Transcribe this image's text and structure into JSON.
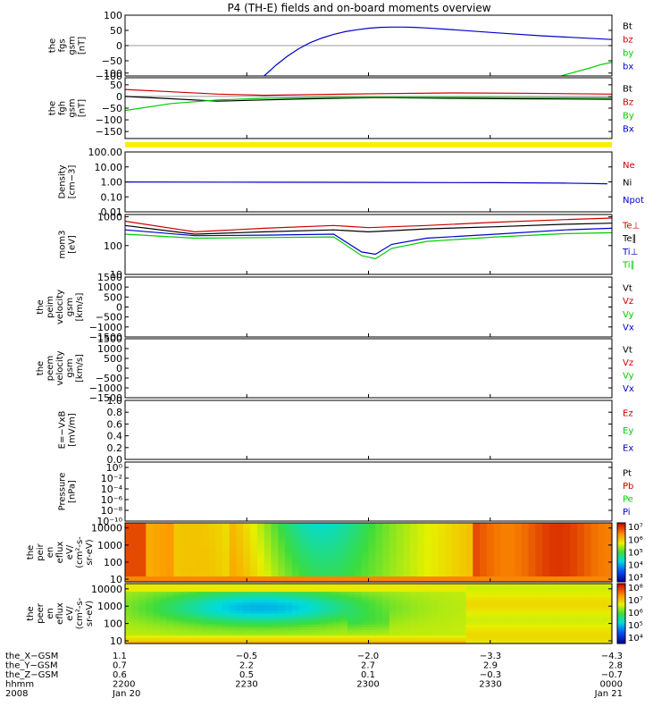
{
  "title": "P4 (TH-E) fields and on-board moments overview",
  "colors": {
    "black": "#000000",
    "red": "#cc0000",
    "green": "#00cc00",
    "blue": "#0000cc",
    "yellow": "#ffee00"
  },
  "chart_data": [
    {
      "type": "line",
      "id": "fgs",
      "ylabel_lines": [
        "the",
        "fgs",
        "gsm",
        "[nT]"
      ],
      "ylim": [
        -100,
        100
      ],
      "yscale": "linear",
      "tick_labels": [
        "100",
        "50",
        "0",
        "−50",
        "−100"
      ],
      "ticks": [
        100,
        50,
        0,
        -50,
        -100
      ],
      "legend": [
        "Bt",
        "bz",
        "by",
        "bx"
      ],
      "legend_colors": [
        "black",
        "red",
        "green",
        "blue"
      ],
      "series": [
        {
          "color": "blue",
          "x": [
            -0.5,
            -0.45,
            -0.4,
            -0.35,
            -0.3,
            -0.25,
            -0.2,
            -0.15,
            -0.1,
            -0.05,
            0.0,
            0.05,
            0.1,
            0.15,
            0.2,
            0.3,
            0.5,
            0.7,
            1.0
          ],
          "y": [
            -100,
            -65,
            -35,
            -10,
            10,
            25,
            37,
            46,
            52,
            57,
            60,
            61,
            61,
            60,
            58,
            53,
            42,
            32,
            20
          ]
        },
        {
          "color": "green",
          "x": [
            0.78,
            0.85,
            0.9,
            0.95,
            1.0
          ],
          "y": [
            -100,
            -85,
            -75,
            -63,
            -55
          ]
        }
      ]
    },
    {
      "type": "line",
      "id": "fgh",
      "ylabel_lines": [
        "the",
        "fgh",
        "gsm",
        "[nT]"
      ],
      "ylim": [
        -180,
        80
      ],
      "yscale": "linear",
      "tick_labels": [
        "100",
        "50",
        "0",
        "−50",
        "−100",
        "−150"
      ],
      "ticks": [
        100,
        50,
        0,
        -50,
        -100,
        -150
      ],
      "legend": [
        "Bt",
        "Bz",
        "By",
        "Bx"
      ],
      "legend_colors": [
        "black",
        "red",
        "green",
        "blue"
      ],
      "series": [
        {
          "color": "red",
          "x": [
            -1.1,
            -0.9,
            -0.7,
            -0.5,
            -0.3,
            0.0,
            0.3,
            0.6,
            1.0
          ],
          "y": [
            30,
            20,
            10,
            5,
            8,
            12,
            15,
            14,
            10
          ]
        },
        {
          "color": "black",
          "x": [
            -1.1,
            -0.9,
            -0.7,
            -0.5,
            -0.3,
            0.0,
            0.3,
            0.6,
            1.0
          ],
          "y": [
            0,
            -10,
            -20,
            -15,
            -10,
            -5,
            -8,
            -10,
            -12
          ]
        },
        {
          "color": "green",
          "x": [
            -1.1,
            -0.9,
            -0.7,
            -0.5,
            -0.3,
            0.0,
            0.3,
            0.6,
            1.0
          ],
          "y": [
            -60,
            -30,
            -15,
            -8,
            -5,
            -3,
            -4,
            -5,
            -6
          ]
        }
      ]
    },
    {
      "type": "bar",
      "id": "mode-bar",
      "color": "yellow"
    },
    {
      "type": "line",
      "id": "density",
      "ylabel_lines": [
        "Density",
        "[cm−3]"
      ],
      "ylim": [
        0.01,
        100
      ],
      "yscale": "log",
      "tick_labels": [
        "100.00",
        "10.00",
        "1.00",
        "0.10",
        "0.01"
      ],
      "ticks": [
        100,
        10,
        1,
        0.1,
        0.01
      ],
      "legend": [
        "Ne",
        "Ni",
        "Npot"
      ],
      "legend_colors": [
        "red",
        "black",
        "blue"
      ],
      "series": [
        {
          "color": "blue",
          "x": [
            -1.1,
            -0.5,
            0.0,
            0.5,
            0.8,
            0.98
          ],
          "y": [
            0.98,
            0.95,
            0.92,
            0.88,
            0.82,
            0.75
          ]
        }
      ]
    },
    {
      "type": "line",
      "id": "temperature",
      "ylabel_lines": [
        "mom3",
        "[eV]"
      ],
      "ylim": [
        10,
        1200
      ],
      "yscale": "log",
      "tick_labels": [
        "1000",
        "100",
        "10"
      ],
      "ticks": [
        1000,
        100,
        10
      ],
      "legend": [
        "Te⊥",
        "Te∥",
        "Ti⊥",
        "Ti∥"
      ],
      "legend_colors": [
        "red",
        "black",
        "blue",
        "green"
      ],
      "series": [
        {
          "color": "red",
          "x": [
            -1.1,
            -0.8,
            -0.5,
            -0.2,
            -0.05,
            0.05,
            0.2,
            0.5,
            0.8,
            1.0
          ],
          "y": [
            700,
            300,
            400,
            500,
            420,
            450,
            500,
            650,
            800,
            900
          ]
        },
        {
          "color": "black",
          "x": [
            -1.1,
            -0.8,
            -0.5,
            -0.2,
            -0.05,
            0.05,
            0.2,
            0.5,
            0.8,
            1.0
          ],
          "y": [
            500,
            250,
            300,
            350,
            300,
            330,
            380,
            450,
            550,
            600
          ]
        },
        {
          "color": "blue",
          "x": [
            -1.1,
            -0.8,
            -0.5,
            -0.2,
            -0.08,
            -0.02,
            0.05,
            0.2,
            0.5,
            0.8,
            1.0
          ],
          "y": [
            350,
            220,
            230,
            250,
            60,
            50,
            110,
            180,
            250,
            350,
            400
          ]
        },
        {
          "color": "green",
          "x": [
            -1.1,
            -0.8,
            -0.5,
            -0.2,
            -0.08,
            -0.02,
            0.05,
            0.2,
            0.5,
            0.8,
            1.0
          ],
          "y": [
            250,
            180,
            190,
            200,
            45,
            35,
            80,
            140,
            200,
            260,
            280
          ]
        }
      ]
    },
    {
      "type": "line",
      "id": "peim-velocity",
      "ylabel_lines": [
        "the",
        "peim",
        "velocity",
        "gsm",
        "[km/s]"
      ],
      "ylim": [
        -1500,
        1500
      ],
      "yscale": "linear",
      "tick_labels": [
        "1500",
        "1000",
        "500",
        "0",
        "−500",
        "−1000",
        "−1500"
      ],
      "ticks": [
        1500,
        1000,
        500,
        0,
        -500,
        -1000,
        -1500
      ],
      "legend": [
        "Vt",
        "Vz",
        "Vy",
        "Vx"
      ],
      "legend_colors": [
        "black",
        "red",
        "green",
        "blue"
      ],
      "series": []
    },
    {
      "type": "line",
      "id": "peem-velocity",
      "ylabel_lines": [
        "the",
        "peem",
        "velocity",
        "gsm",
        "[km/s]"
      ],
      "ylim": [
        -1500,
        1500
      ],
      "yscale": "linear",
      "tick_labels": [
        "1500",
        "1000",
        "500",
        "0",
        "−500",
        "−1000",
        "−1500"
      ],
      "ticks": [
        1500,
        1000,
        500,
        0,
        -500,
        -1000,
        -1500
      ],
      "legend": [
        "Vt",
        "Vz",
        "Vy",
        "Vx"
      ],
      "legend_colors": [
        "black",
        "red",
        "green",
        "blue"
      ],
      "series": []
    },
    {
      "type": "line",
      "id": "efield",
      "ylabel_lines": [
        "E=−VxB",
        "[mV/m]"
      ],
      "ylim": [
        0,
        1
      ],
      "yscale": "linear",
      "tick_labels": [
        "1.0",
        "0.8",
        "0.6",
        "0.4",
        "0.2",
        "0.0"
      ],
      "ticks": [
        1.0,
        0.8,
        0.6,
        0.4,
        0.2,
        0.0
      ],
      "legend": [
        "Ez",
        "Ey",
        "Ex"
      ],
      "legend_colors": [
        "red",
        "green",
        "blue"
      ],
      "series": []
    },
    {
      "type": "line",
      "id": "pressure",
      "ylabel_lines": [
        "Pressure",
        "[nPa]"
      ],
      "ylim": [
        1e-10,
        10
      ],
      "yscale": "log",
      "tick_labels": [
        "10⁰",
        "10⁻²",
        "10⁻⁴",
        "10⁻⁶",
        "10⁻⁸",
        "10⁻¹⁰"
      ],
      "ticks": [
        1,
        0.01,
        0.0001,
        1e-06,
        1e-08,
        1e-10
      ],
      "legend": [
        "Pt",
        "Pb",
        "Pe",
        "Pi"
      ],
      "legend_colors": [
        "black",
        "red",
        "green",
        "blue"
      ],
      "series": []
    },
    {
      "type": "heatmap",
      "id": "peir-spectrogram",
      "ylabel_lines": [
        "the",
        "peir",
        "en",
        "eflux",
        "eV/",
        "(cm²-s-",
        "sr-eV)"
      ],
      "ylim": [
        7,
        20000
      ],
      "yscale": "log",
      "tick_labels": [
        "10000",
        "1000",
        "100",
        "10"
      ],
      "ticks": [
        10000,
        1000,
        100,
        10
      ],
      "colorbar_labels": [
        "10⁷",
        "10⁶",
        "10⁵",
        "10⁴",
        "10³"
      ],
      "colorbar_levels": [
        7,
        6,
        5,
        4,
        3
      ],
      "colorbar_range": [
        2.6,
        7.3
      ]
    },
    {
      "type": "heatmap",
      "id": "peer-spectrogram",
      "ylabel_lines": [
        "the",
        "peer",
        "en",
        "eflux",
        "eV/",
        "(cm²-s-",
        "sr-eV)"
      ],
      "ylim": [
        7,
        20000
      ],
      "yscale": "log",
      "tick_labels": [
        "10000",
        "1000",
        "100",
        "10"
      ],
      "ticks": [
        10000,
        1000,
        100,
        10
      ],
      "colorbar_labels": [
        "10⁸",
        "10⁷",
        "10⁶",
        "10⁵",
        "10⁴"
      ],
      "colorbar_levels": [
        8,
        7,
        6,
        5,
        4
      ],
      "colorbar_range": [
        3.5,
        8.3
      ]
    }
  ],
  "x_axis": {
    "rows": [
      {
        "label": "the_X−GSM",
        "values": [
          "1.1",
          "−0.5",
          "−2.0",
          "−3.3",
          "−4.3"
        ]
      },
      {
        "label": "the_Y−GSM",
        "values": [
          "0.7",
          "2.2",
          "2.7",
          "2.9",
          "2.8"
        ]
      },
      {
        "label": "the_Z−GSM",
        "values": [
          "0.6",
          "0.5",
          "0.1",
          "−0.3",
          "−0.7"
        ]
      },
      {
        "label": "hhmm",
        "values": [
          "2200",
          "2230",
          "2300",
          "2330",
          "0000"
        ]
      },
      {
        "label": "2008",
        "values": [
          "Jan 20",
          "",
          "",
          "",
          "Jan 21"
        ]
      }
    ]
  }
}
